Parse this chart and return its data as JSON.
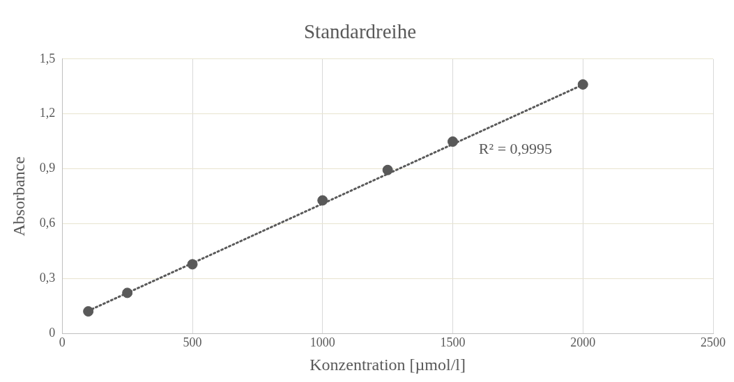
{
  "chart_data": {
    "type": "scatter",
    "title": "Standardreihe",
    "xlabel": "Konzentration [µmol/l]",
    "ylabel": "Absorbance",
    "x": [
      100,
      250,
      500,
      1000,
      1250,
      1500,
      2000
    ],
    "series": [
      {
        "color": "#595959",
        "values": [
          0.122,
          0.223,
          0.379,
          0.728,
          0.894,
          1.049,
          1.361
        ],
        "marker": "circle"
      },
      {
        "type": "line",
        "x": [
          100,
          2000
        ],
        "values": [
          0.125,
          1.36
        ],
        "color": "#595959",
        "line_style": "dotted",
        "marker": "none"
      }
    ],
    "xlim": [
      0,
      2500
    ],
    "xticks": [
      0,
      500,
      1000,
      1500,
      2000,
      2500
    ],
    "ylim": [
      0,
      1.5
    ],
    "yticks": [
      0,
      {
        "value": 0.3,
        "label": "0,3"
      },
      {
        "value": 0.6,
        "label": "0,6"
      },
      {
        "value": 0.9,
        "label": "0,9"
      },
      {
        "value": 1.2,
        "label": "1,2"
      },
      {
        "value": 1.5,
        "label": "1,5"
      }
    ],
    "annotations": [
      "R² = 0,9995"
    ],
    "grid": true,
    "legend": false
  }
}
